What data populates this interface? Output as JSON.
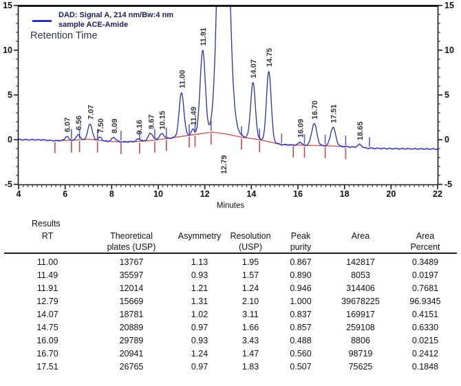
{
  "legend": {
    "line1": "DAD: Signal A, 214 nm/Bw:4 nm",
    "line2": "sample ACE-Amide",
    "retention_label": "Retention Time"
  },
  "chart_data": {
    "type": "line",
    "title": "",
    "xlabel": "Minutes",
    "ylabel": "",
    "xlim": [
      4,
      22
    ],
    "ylim": [
      -5,
      15
    ],
    "x_major_ticks": [
      4,
      6,
      8,
      10,
      12,
      14,
      16,
      18,
      20,
      22
    ],
    "y_major_ticks": [
      -5,
      0,
      5,
      10,
      15
    ],
    "x_minor_step": 0.2,
    "y_minor_step": 1,
    "grid": false,
    "legend_position": "top-left",
    "colors": {
      "trace": "#2a2ab6",
      "baseline": "#c84848",
      "tick_blue": "#5e5ec4",
      "axis": "#1a1a1a",
      "peak_label": "#34343f"
    },
    "peaks": [
      {
        "rt": 6.07,
        "height": 0.45,
        "sigma": 0.07,
        "label": "6.07"
      },
      {
        "rt": 6.56,
        "height": 0.6,
        "sigma": 0.07,
        "label": "6.56"
      },
      {
        "rt": 7.07,
        "height": 1.75,
        "sigma": 0.09,
        "label": "7.07"
      },
      {
        "rt": 7.5,
        "height": 0.35,
        "sigma": 0.07,
        "label": "7.50"
      },
      {
        "rt": 8.09,
        "height": 0.45,
        "sigma": 0.09,
        "label": "8.09"
      },
      {
        "rt": 9.16,
        "height": 0.3,
        "sigma": 0.08,
        "label": "9.16"
      },
      {
        "rt": 9.67,
        "height": 0.8,
        "sigma": 0.1,
        "label": "9.67"
      },
      {
        "rt": 10.15,
        "height": 0.6,
        "sigma": 0.1,
        "label": "10.15"
      },
      {
        "rt": 11.0,
        "height": 4.9,
        "sigma": 0.1,
        "label": "11.00"
      },
      {
        "rt": 11.49,
        "height": 0.6,
        "sigma": 0.07,
        "label": "11.49"
      },
      {
        "rt": 11.91,
        "height": 9.3,
        "sigma": 0.11,
        "label": "11.91"
      },
      {
        "rt": 12.79,
        "height": 40.0,
        "sigma": 0.2,
        "label": "12.79",
        "label_below": true
      },
      {
        "rt": 12.97,
        "height": 3.0,
        "sigma": 0.27
      },
      {
        "rt": 14.07,
        "height": 6.3,
        "sigma": 0.1,
        "label": "14.07"
      },
      {
        "rt": 14.75,
        "height": 7.9,
        "sigma": 0.1,
        "label": "14.75"
      },
      {
        "rt": 16.09,
        "height": 0.35,
        "sigma": 0.07,
        "label": "16.09"
      },
      {
        "rt": 16.7,
        "height": 2.45,
        "sigma": 0.11,
        "label": "16.70"
      },
      {
        "rt": 17.51,
        "height": 2.1,
        "sigma": 0.11,
        "label": "17.51"
      },
      {
        "rt": 18.65,
        "height": 0.35,
        "sigma": 0.09,
        "label": "18.65"
      }
    ],
    "baseline_points": [
      [
        5.56,
        -0.12
      ],
      [
        6.3,
        -0.05
      ],
      [
        7.0,
        0.05
      ],
      [
        7.4,
        -0.05
      ],
      [
        7.8,
        -0.18
      ],
      [
        8.5,
        -0.25
      ],
      [
        9.3,
        -0.18
      ],
      [
        9.85,
        -0.05
      ],
      [
        10.52,
        0.18
      ],
      [
        11.34,
        0.5
      ],
      [
        11.58,
        0.58
      ],
      [
        12.3,
        0.85
      ],
      [
        13.0,
        0.6
      ],
      [
        13.58,
        0.28
      ],
      [
        14.35,
        0.0
      ],
      [
        15.3,
        -0.55
      ],
      [
        15.8,
        -0.6
      ],
      [
        16.28,
        -0.62
      ],
      [
        17.17,
        -0.68
      ],
      [
        18.05,
        -0.78
      ]
    ],
    "trace_base": [
      [
        4,
        0
      ],
      [
        5.0,
        -0.02
      ],
      [
        5.56,
        -0.12
      ],
      [
        6.3,
        -0.05
      ],
      [
        7.0,
        0.05
      ],
      [
        7.4,
        -0.05
      ],
      [
        7.8,
        -0.18
      ],
      [
        8.5,
        -0.25
      ],
      [
        9.3,
        -0.18
      ],
      [
        9.85,
        -0.05
      ],
      [
        10.52,
        0.18
      ],
      [
        11.34,
        0.5
      ],
      [
        11.58,
        0.58
      ],
      [
        12.3,
        0.85
      ],
      [
        13.0,
        0.6
      ],
      [
        13.58,
        0.28
      ],
      [
        14.35,
        0.0
      ],
      [
        15.3,
        -0.55
      ],
      [
        15.8,
        -0.6
      ],
      [
        16.28,
        -0.62
      ],
      [
        17.17,
        -0.68
      ],
      [
        18.05,
        -0.78
      ],
      [
        19.0,
        -0.95
      ],
      [
        20.0,
        -1.0
      ],
      [
        22.0,
        -1.05
      ]
    ],
    "boundary_ticks": [
      {
        "m": 5.56,
        "red": true,
        "blue": false
      },
      {
        "m": 6.27,
        "red": true,
        "blue": true
      },
      {
        "m": 6.62,
        "red": true,
        "blue": true
      },
      {
        "m": 7.39,
        "red": true,
        "blue": true
      },
      {
        "m": 8.4,
        "red": true,
        "blue": true
      },
      {
        "m": 9.2,
        "red": true,
        "blue": true
      },
      {
        "m": 9.85,
        "red": true,
        "blue": true
      },
      {
        "m": 10.35,
        "red": true,
        "blue": true
      },
      {
        "m": 11.33,
        "red": true,
        "blue": true
      },
      {
        "m": 11.58,
        "red": true,
        "blue": true
      },
      {
        "m": 12.27,
        "red": true,
        "blue": true
      },
      {
        "m": 13.58,
        "red": true,
        "blue": true
      },
      {
        "m": 14.35,
        "red": true,
        "blue": true
      },
      {
        "m": 15.3,
        "red": false,
        "blue": true
      },
      {
        "m": 15.8,
        "red": true,
        "blue": false
      },
      {
        "m": 16.28,
        "red": true,
        "blue": true
      },
      {
        "m": 17.17,
        "red": true,
        "blue": true
      },
      {
        "m": 18.05,
        "red": true,
        "blue": true
      },
      {
        "m": 19.07,
        "red": false,
        "blue": true
      }
    ]
  },
  "table": {
    "title": "Results",
    "columns": [
      {
        "line1": "RT",
        "line2": ""
      },
      {
        "line1": "Theoretical",
        "line2": "plates (USP)"
      },
      {
        "line1": "Asymmetry",
        "line2": ""
      },
      {
        "line1": "Resolution",
        "line2": "(USP)"
      },
      {
        "line1": "Peak",
        "line2": "purity"
      },
      {
        "line1": "Area",
        "line2": ""
      },
      {
        "line1": "Area",
        "line2": "Percent"
      }
    ],
    "rows": [
      [
        "11.00",
        "13767",
        "1.13",
        "1.95",
        "0.867",
        "142817",
        "0.3489"
      ],
      [
        "11.49",
        "35597",
        "0.93",
        "1.57",
        "0.890",
        "8053",
        "0.0197"
      ],
      [
        "11.91",
        "12014",
        "1.21",
        "1.24",
        "0.946",
        "314406",
        "0.7681"
      ],
      [
        "12.79",
        "15669",
        "1.31",
        "2.10",
        "1.000",
        "39678225",
        "96.9345"
      ],
      [
        "14.07",
        "18781",
        "1.02",
        "3.11",
        "0.837",
        "169917",
        "0.4151"
      ],
      [
        "14.75",
        "20889",
        "0.97",
        "1.66",
        "0.857",
        "259108",
        "0.6330"
      ],
      [
        "16.09",
        "29789",
        "0.93",
        "3.43",
        "0.488",
        "8806",
        "0.0215"
      ],
      [
        "16.70",
        "20941",
        "1.24",
        "1.47",
        "0.560",
        "98719",
        "0.2412"
      ],
      [
        "17.51",
        "26765",
        "0.97",
        "1.83",
        "0.507",
        "75625",
        "0.1848"
      ]
    ]
  }
}
